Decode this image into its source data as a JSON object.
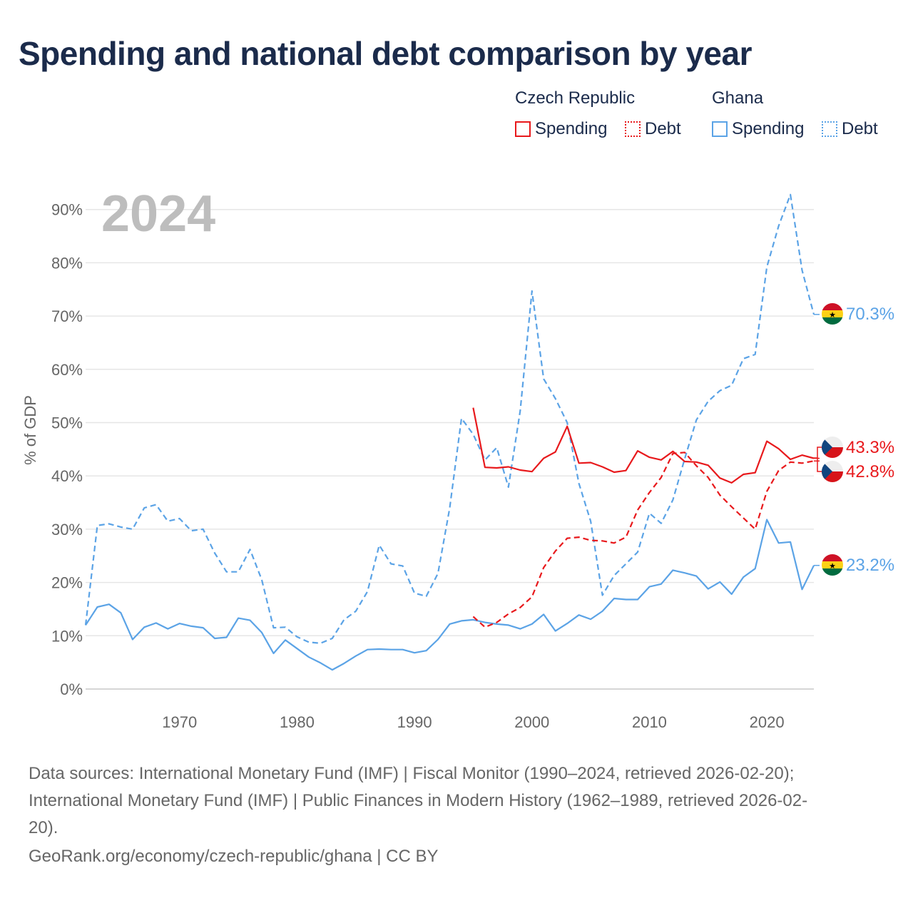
{
  "title": "Spending and national debt comparison by year",
  "legend": {
    "czech_label": "Czech Republic",
    "ghana_label": "Ghana",
    "spending_label": "Spending",
    "debt_label": "Debt"
  },
  "colors": {
    "czech": "#e8191c",
    "ghana": "#5ba3e6",
    "grid": "#e6e6e6",
    "axis": "#cccccc"
  },
  "sources": {
    "line1": "Data sources: International Monetary Fund (IMF) | Fiscal Monitor (1990–2024, retrieved 2026-02-20);",
    "line2": "International Monetary Fund (IMF) | Public Finances in Modern History (1962–1989, retrieved 2026-02-",
    "line3": "20).",
    "attribution": "GeoRank.org/economy/czech-republic/ghana | CC BY"
  },
  "chart_data": {
    "type": "line",
    "title": "Spending and national debt comparison by year",
    "year_label": "2024",
    "ylabel": "% of GDP",
    "xlabel": "",
    "xlim": [
      1962,
      2024
    ],
    "ylim": [
      0,
      95
    ],
    "y_ticks": [
      0,
      10,
      20,
      30,
      40,
      50,
      60,
      70,
      80,
      90
    ],
    "y_tick_labels": [
      "0%",
      "10%",
      "20%",
      "30%",
      "40%",
      "50%",
      "60%",
      "70%",
      "80%",
      "90%"
    ],
    "x_ticks": [
      1970,
      1980,
      1990,
      2000,
      2010,
      2020
    ],
    "x_tick_labels": [
      "1970",
      "1980",
      "1990",
      "2000",
      "2010",
      "2020"
    ],
    "grid": true,
    "legend_position": "top-right",
    "series": [
      {
        "name": "Ghana Debt",
        "country": "Ghana",
        "kind": "Debt",
        "style": "dashed",
        "color": "#5ba3e6",
        "start_year": 1962,
        "values": [
          12.0,
          30.7,
          31.0,
          30.4,
          30.0,
          34.0,
          34.6,
          31.5,
          32.0,
          29.7,
          30.0,
          25.5,
          22.0,
          22.0,
          26.2,
          20.5,
          11.5,
          11.6,
          9.8,
          8.8,
          8.6,
          9.5,
          13.0,
          14.6,
          18.3,
          27.0,
          23.5,
          23.1,
          18.0,
          17.4,
          21.7,
          34.0,
          50.8,
          47.8,
          43.0,
          45.3,
          37.9,
          52.2,
          74.7,
          58.2,
          54.5,
          50.0,
          38.6,
          31.5,
          17.6,
          21.3,
          23.5,
          25.7,
          33.0,
          31.1,
          35.5,
          43.2,
          50.5,
          54.0,
          56.0,
          57.0,
          62.0,
          62.8,
          79.2,
          86.9,
          92.8,
          78.6,
          70.3
        ]
      },
      {
        "name": "Ghana Spending",
        "country": "Ghana",
        "kind": "Spending",
        "style": "solid",
        "color": "#5ba3e6",
        "start_year": 1962,
        "values": [
          12.0,
          15.4,
          15.9,
          14.3,
          9.3,
          11.6,
          12.4,
          11.3,
          12.3,
          11.8,
          11.5,
          9.5,
          9.7,
          13.3,
          12.9,
          10.6,
          6.7,
          9.2,
          7.6,
          6.0,
          4.9,
          3.6,
          4.8,
          6.2,
          7.4,
          7.5,
          7.4,
          7.4,
          6.8,
          7.2,
          9.3,
          12.2,
          12.8,
          13.0,
          12.5,
          12.2,
          12.0,
          11.3,
          12.2,
          14.0,
          10.9,
          12.3,
          13.9,
          13.1,
          14.6,
          17.0,
          16.8,
          16.8,
          19.2,
          19.7,
          22.3,
          21.8,
          21.2,
          18.8,
          20.1,
          17.8,
          21.0,
          22.6,
          31.8,
          27.4,
          27.6,
          18.7,
          23.2
        ]
      },
      {
        "name": "Czech Republic Spending",
        "country": "Czech Republic",
        "kind": "Spending",
        "style": "solid",
        "color": "#e8191c",
        "start_year": 1995,
        "values": [
          52.8,
          41.6,
          41.5,
          41.7,
          41.1,
          40.8,
          43.3,
          44.5,
          49.3,
          42.4,
          42.5,
          41.7,
          40.7,
          41.0,
          44.7,
          43.5,
          43.0,
          44.6,
          42.7,
          42.6,
          42.0,
          39.6,
          38.7,
          40.3,
          40.6,
          46.5,
          45.1,
          43.1,
          43.9,
          43.3
        ]
      },
      {
        "name": "Czech Republic Debt",
        "country": "Czech Republic",
        "kind": "Debt",
        "style": "dashed",
        "color": "#e8191c",
        "start_year": 1995,
        "values": [
          13.6,
          11.6,
          12.5,
          14.1,
          15.3,
          17.3,
          22.8,
          25.9,
          28.3,
          28.5,
          27.9,
          27.8,
          27.4,
          28.5,
          33.6,
          36.9,
          39.7,
          44.2,
          44.4,
          41.9,
          39.7,
          36.4,
          34.2,
          32.1,
          30.0,
          37.1,
          41.0,
          42.6,
          42.4,
          42.8
        ]
      }
    ],
    "end_labels": [
      {
        "country": "Ghana",
        "kind": "Debt",
        "value": 70.3,
        "text": "70.3%"
      },
      {
        "country": "Czech Republic",
        "kind": "Spending",
        "value": 43.3,
        "text": "43.3%"
      },
      {
        "country": "Czech Republic",
        "kind": "Debt",
        "value": 42.8,
        "text": "42.8%"
      },
      {
        "country": "Ghana",
        "kind": "Spending",
        "value": 23.2,
        "text": "23.2%"
      }
    ]
  }
}
